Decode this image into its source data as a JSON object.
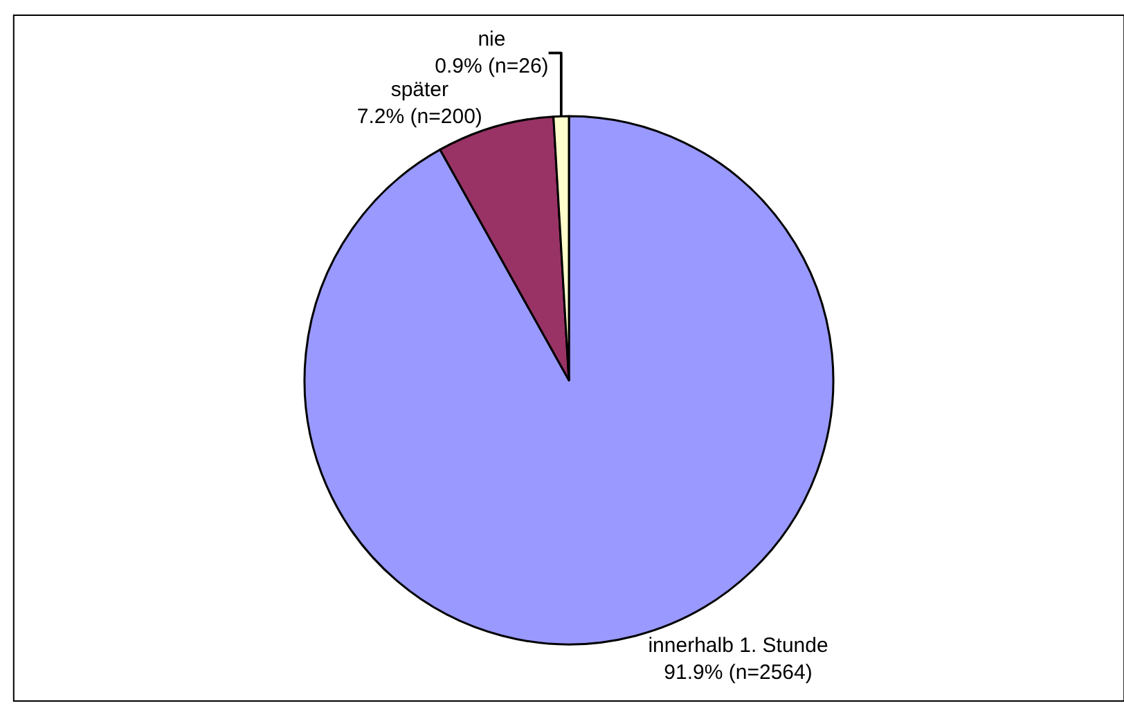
{
  "chart_data": {
    "type": "pie",
    "categories": [
      "innerhalb 1. Stunde",
      "später",
      "nie"
    ],
    "values": [
      2564,
      200,
      26
    ],
    "value_labels": [
      "91.9% (n=2564)",
      "7.2% (n=200)",
      "0.9% (n=26)"
    ],
    "colors": [
      "#9999ff",
      "#993366",
      "#ffffcc"
    ],
    "legend": false
  }
}
